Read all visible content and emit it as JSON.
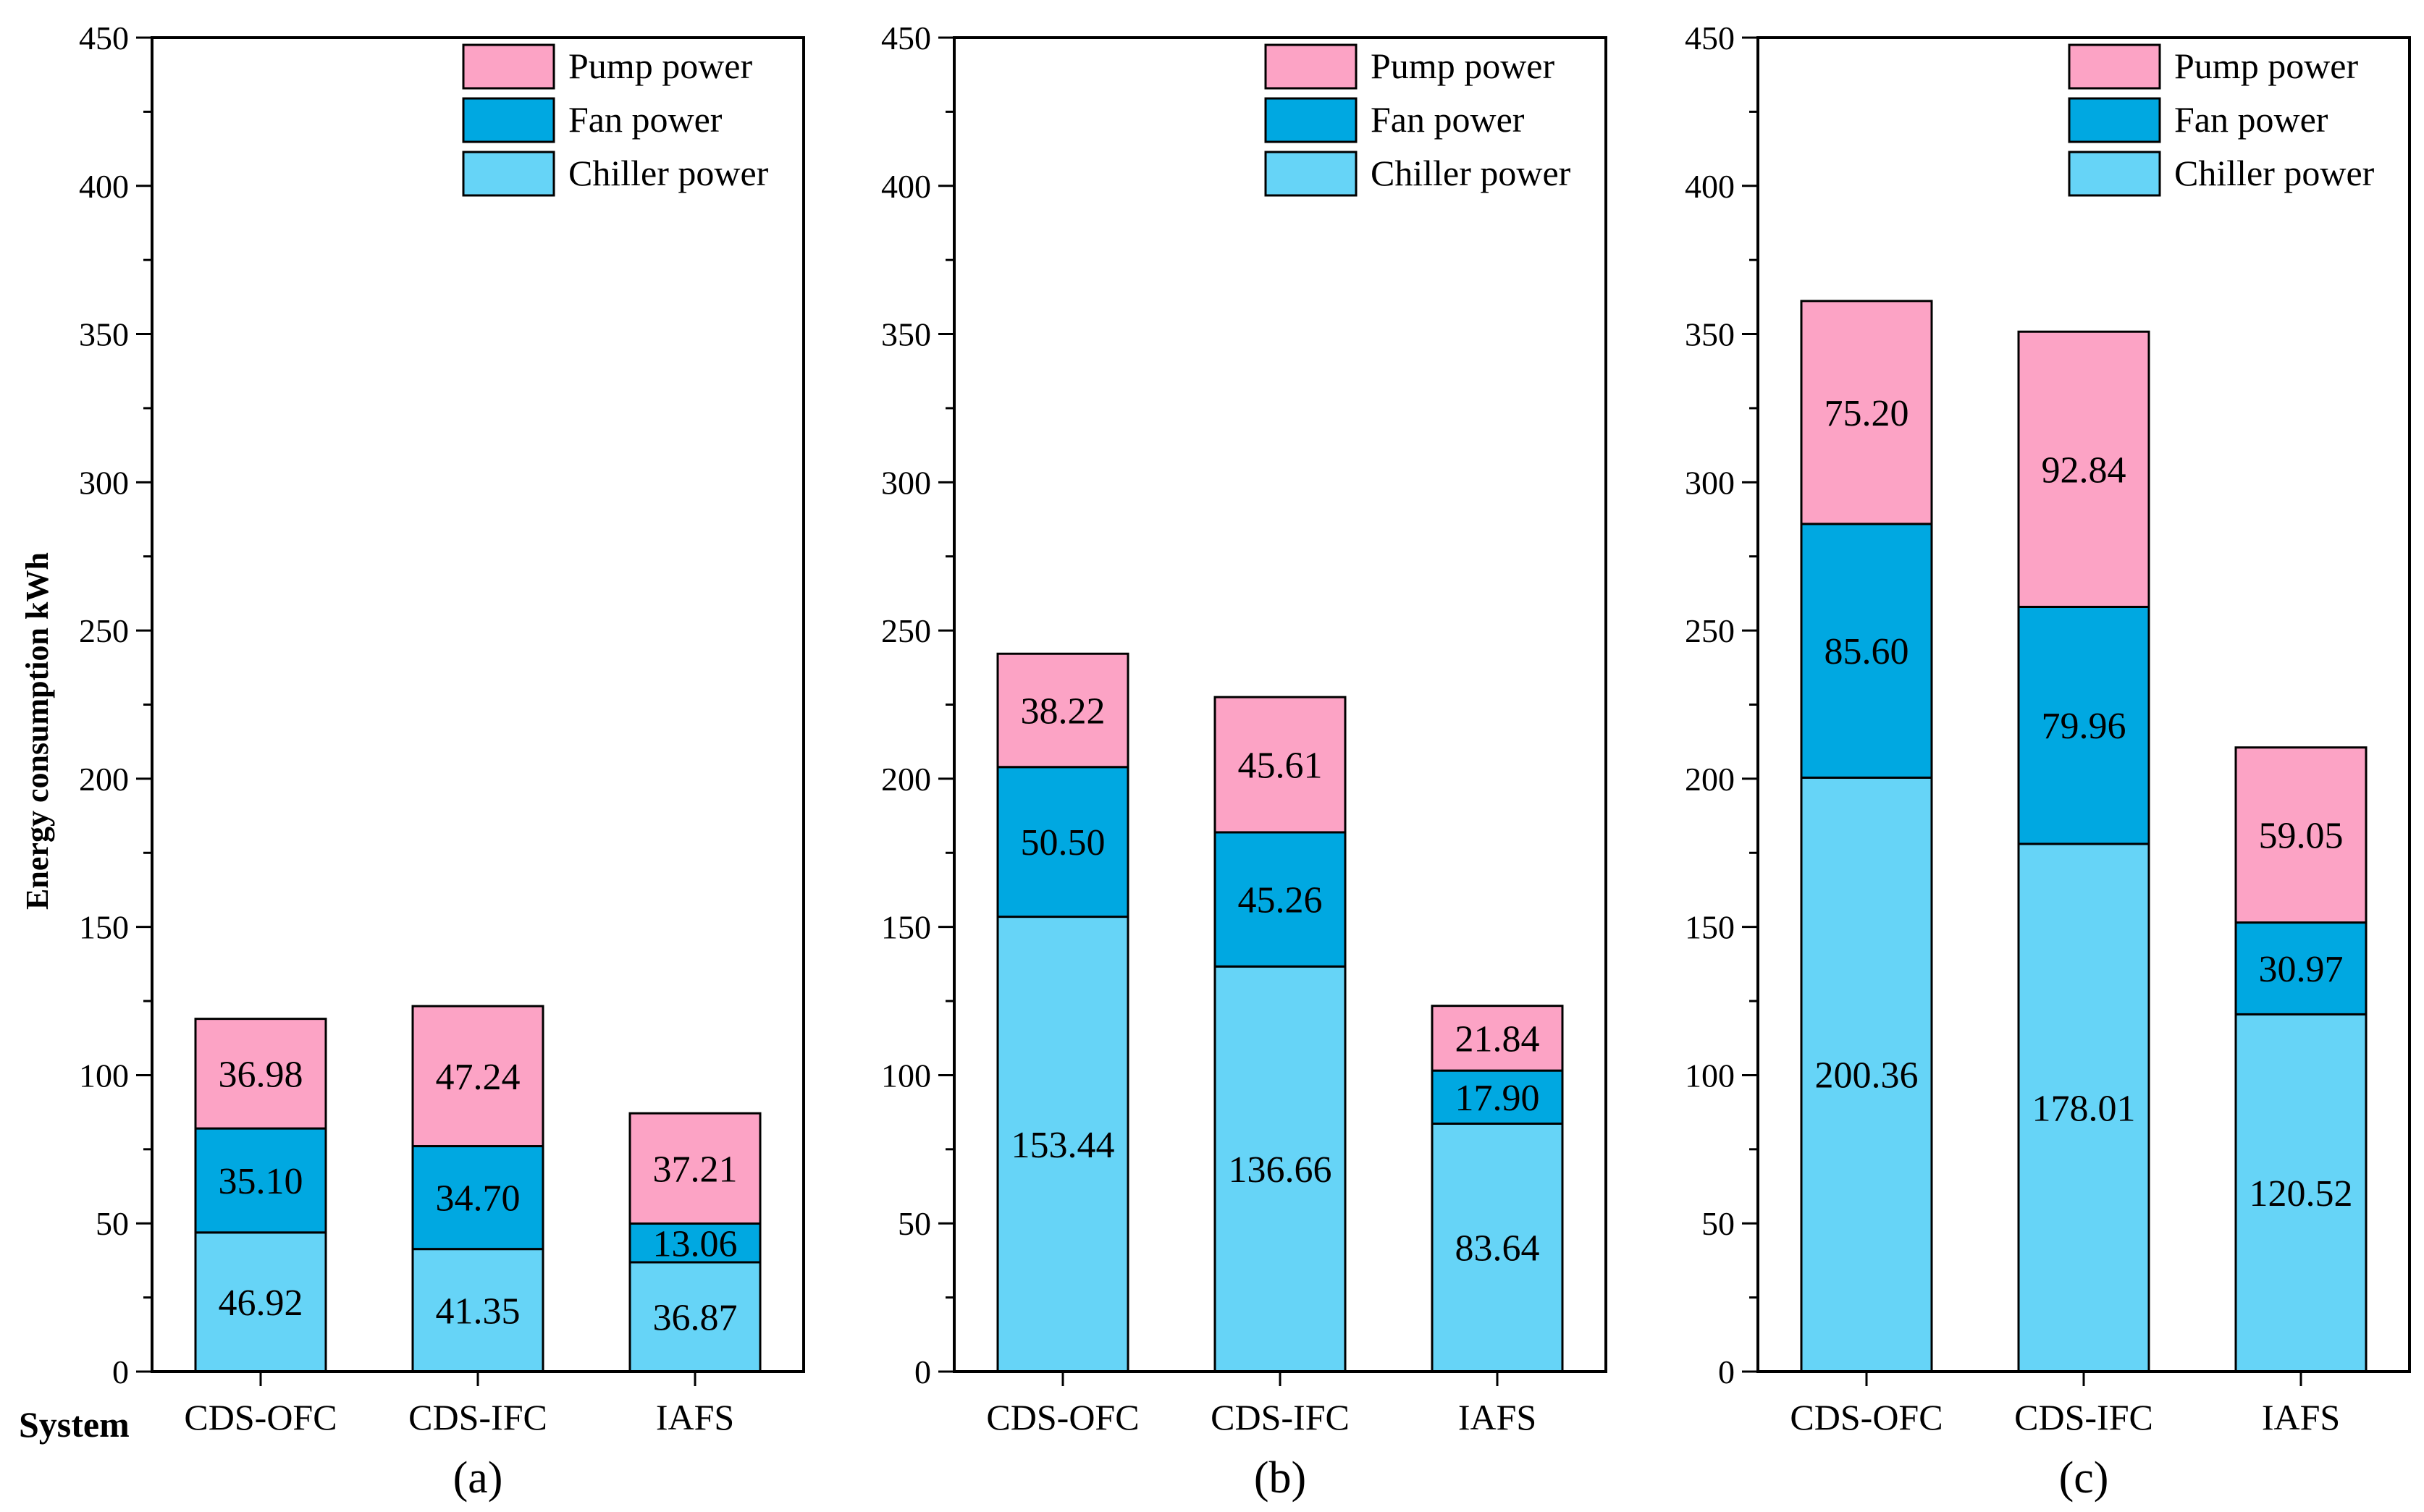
{
  "figure": {
    "ylabel": "Energy consumption  kWh",
    "xlabel": "System"
  },
  "colors": {
    "Chiller power": "#66D4F7",
    "Fan power": "#00A8E1",
    "Pump power": "#FCA3C5",
    "edge": "#000000"
  },
  "chart_data": [
    {
      "type": "bar",
      "stacked": true,
      "panel_label": "(a)",
      "categories": [
        "CDS-OFC",
        "CDS-IFC",
        "IAFS"
      ],
      "ylim": [
        0,
        450
      ],
      "yticks": [
        0,
        50,
        100,
        150,
        200,
        250,
        300,
        350,
        400,
        450
      ],
      "legend": [
        "Pump power",
        "Fan power",
        "Chiller power"
      ],
      "series": [
        {
          "name": "Chiller power",
          "values": [
            46.92,
            41.35,
            36.87
          ],
          "labels": [
            "46.92",
            "41.35",
            "36.87"
          ]
        },
        {
          "name": "Fan power",
          "values": [
            35.1,
            34.7,
            13.06
          ],
          "labels": [
            "35.10",
            "34.70",
            "13.06"
          ]
        },
        {
          "name": "Pump power",
          "values": [
            36.98,
            47.24,
            37.21
          ],
          "labels": [
            "36.98",
            "47.24",
            "37.21"
          ]
        }
      ]
    },
    {
      "type": "bar",
      "stacked": true,
      "panel_label": "(b)",
      "categories": [
        "CDS-OFC",
        "CDS-IFC",
        "IAFS"
      ],
      "ylim": [
        0,
        450
      ],
      "yticks": [
        0,
        50,
        100,
        150,
        200,
        250,
        300,
        350,
        400,
        450
      ],
      "legend": [
        "Pump power",
        "Fan power",
        "Chiller power"
      ],
      "series": [
        {
          "name": "Chiller power",
          "values": [
            153.44,
            136.66,
            83.64
          ],
          "labels": [
            "153.44",
            "136.66",
            "83.64"
          ]
        },
        {
          "name": "Fan power",
          "values": [
            50.5,
            45.26,
            17.9
          ],
          "labels": [
            "50.50",
            "45.26",
            "17.90"
          ]
        },
        {
          "name": "Pump power",
          "values": [
            38.22,
            45.61,
            21.84
          ],
          "labels": [
            "38.22",
            "45.61",
            "21.84"
          ]
        }
      ]
    },
    {
      "type": "bar",
      "stacked": true,
      "panel_label": "(c)",
      "categories": [
        "CDS-OFC",
        "CDS-IFC",
        "IAFS"
      ],
      "ylim": [
        0,
        450
      ],
      "yticks": [
        0,
        50,
        100,
        150,
        200,
        250,
        300,
        350,
        400,
        450
      ],
      "legend": [
        "Pump power",
        "Fan power",
        "Chiller power"
      ],
      "series": [
        {
          "name": "Chiller power",
          "values": [
            200.36,
            178.01,
            120.52
          ],
          "labels": [
            "200.36",
            "178.01",
            "120.52"
          ]
        },
        {
          "name": "Fan power",
          "values": [
            85.6,
            79.96,
            30.97
          ],
          "labels": [
            "85.60",
            "79.96",
            "30.97"
          ]
        },
        {
          "name": "Pump power",
          "values": [
            75.2,
            92.84,
            59.05
          ],
          "labels": [
            "75.20",
            "92.84",
            "59.05"
          ]
        }
      ]
    }
  ]
}
